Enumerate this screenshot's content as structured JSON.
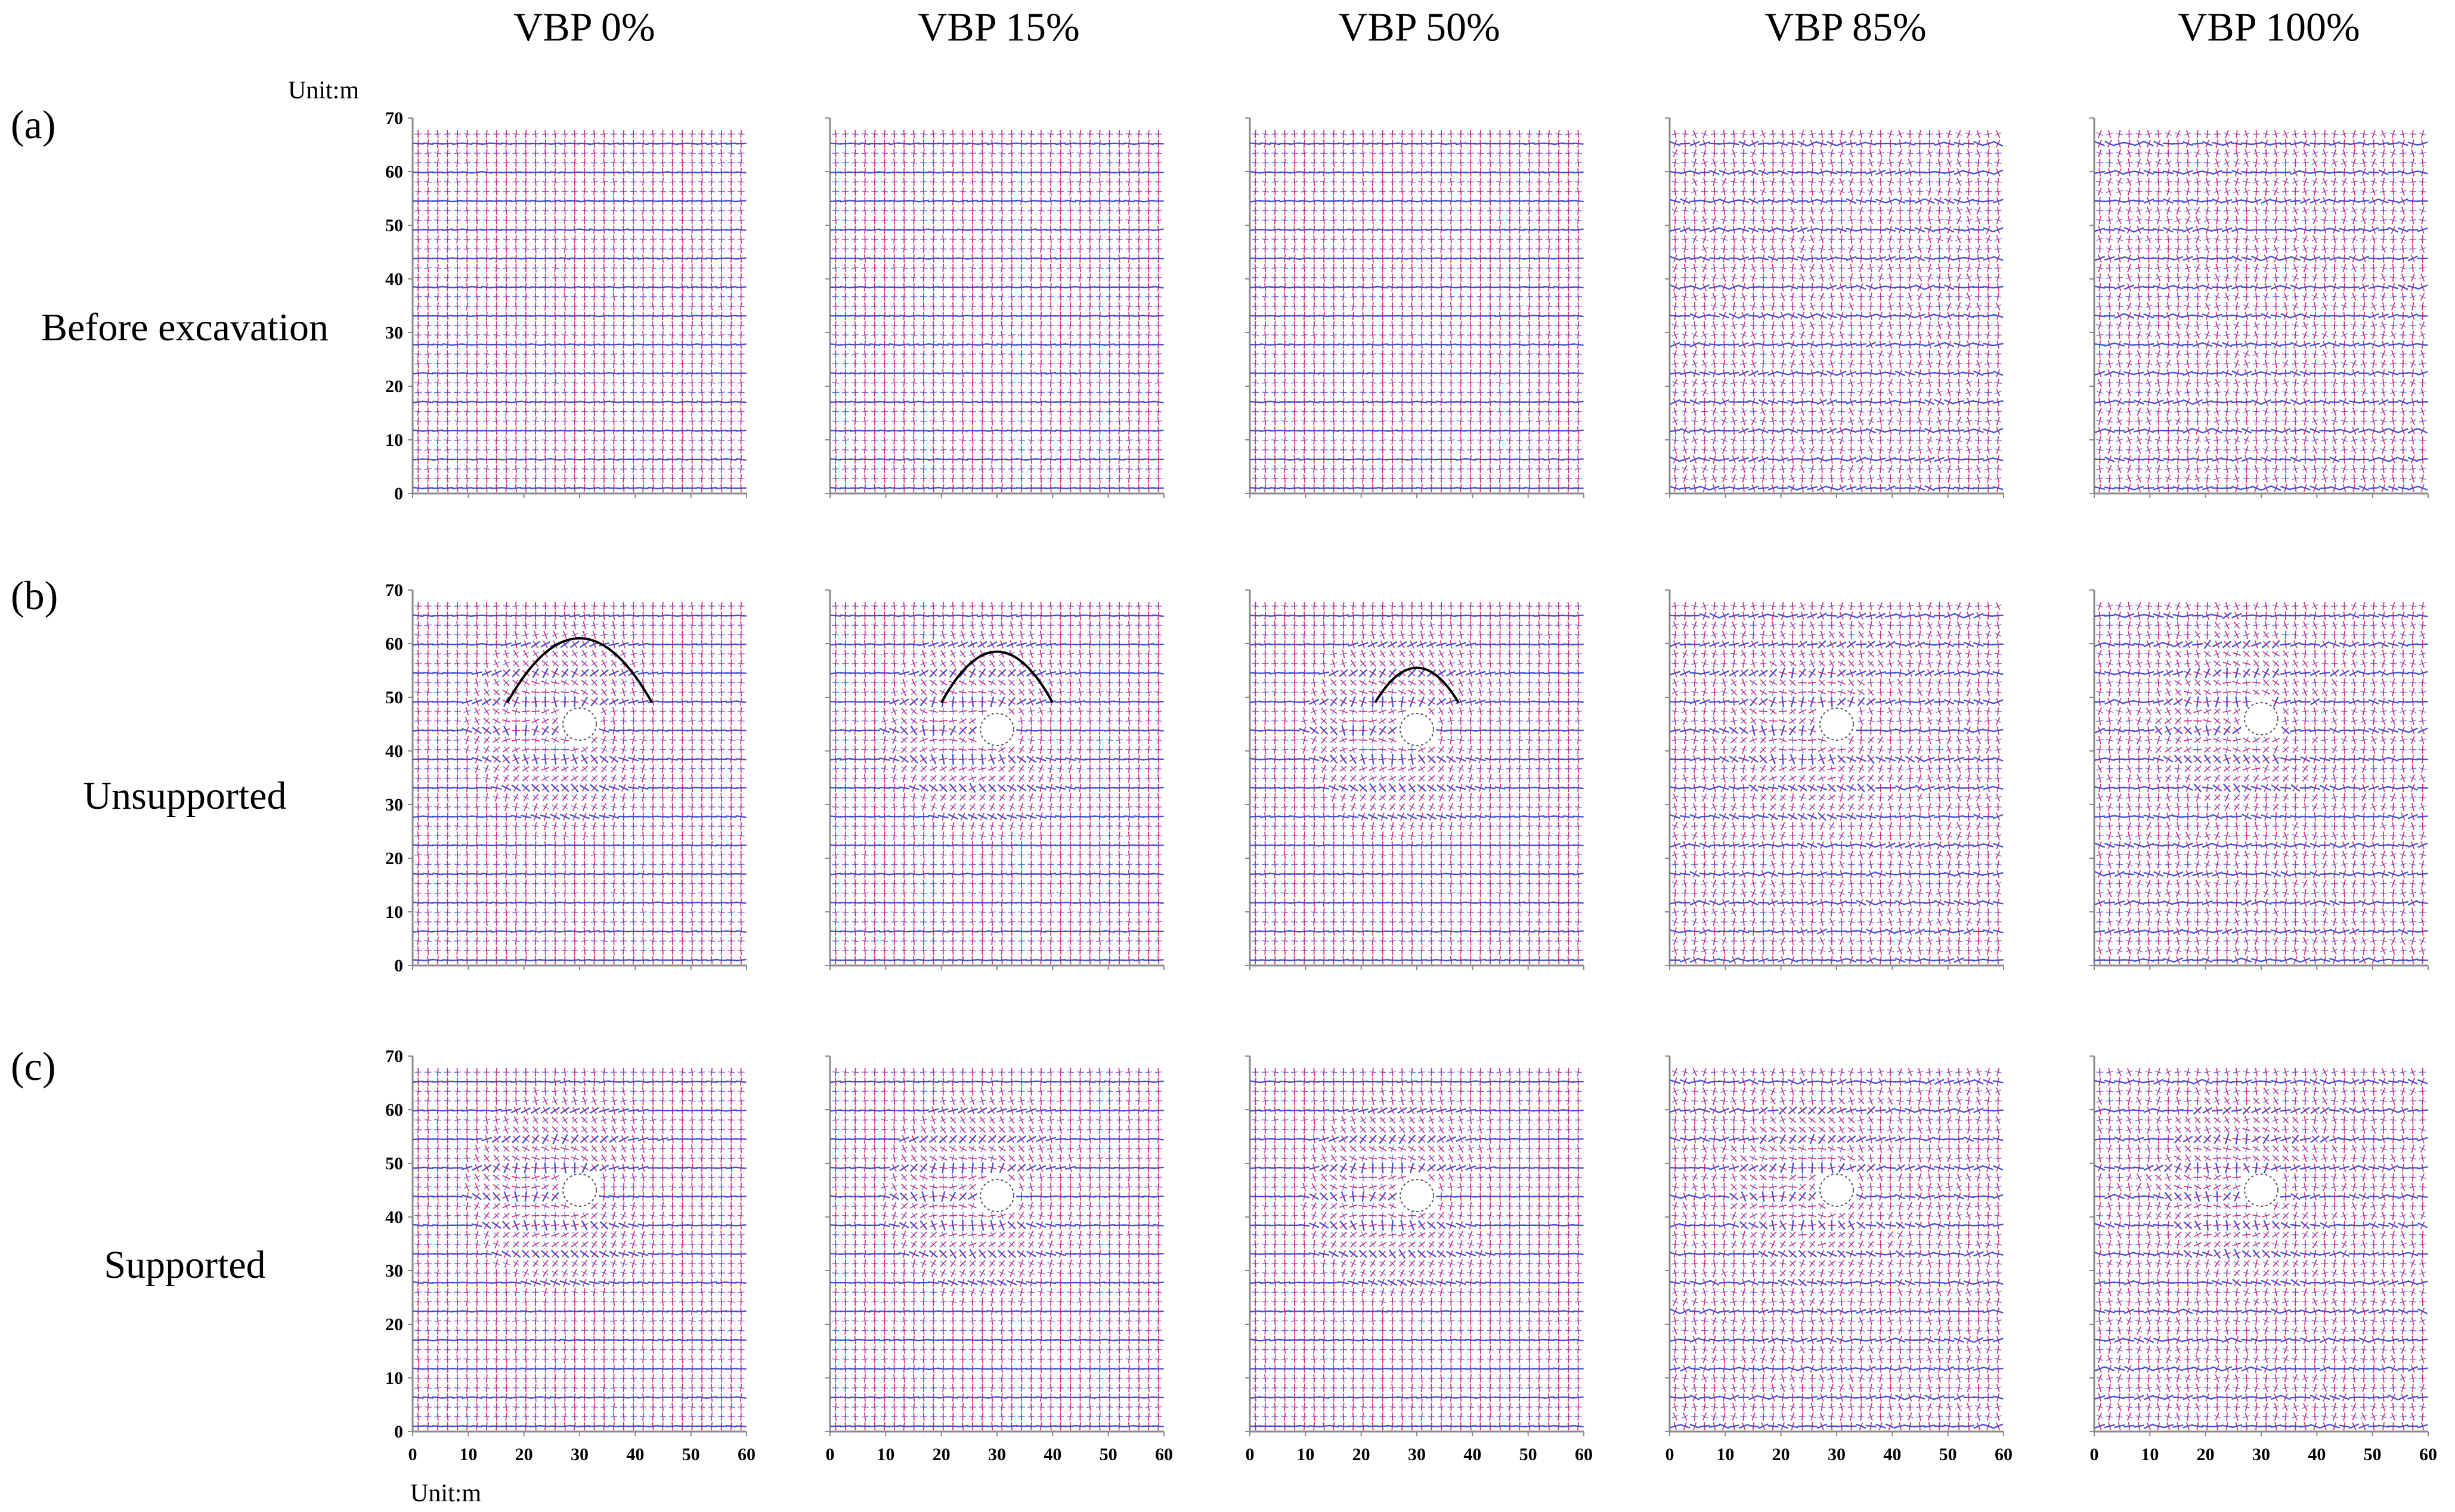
{
  "figure": {
    "column_titles": [
      "VBP 0%",
      "VBP 15%",
      "VBP 50%",
      "VBP 85%",
      "VBP 100%"
    ],
    "row_letters": [
      "(a)",
      "(b)",
      "(c)"
    ],
    "row_labels": [
      "Before excavation",
      "Unsupported",
      "Supported"
    ],
    "unit_top": "Unit:m",
    "unit_bottom": "Unit:m"
  },
  "chart_data": [
    {
      "type": "scatter",
      "title": "VBP 0% / Before excavation",
      "xlim": [
        0,
        60
      ],
      "ylim": [
        0,
        70
      ],
      "x_ticks": [
        0,
        10,
        20,
        30,
        40,
        50,
        60
      ],
      "y_ticks": [
        0,
        10,
        20,
        30,
        40,
        50,
        60,
        70
      ],
      "grid_x": [
        1,
        59
      ],
      "grid_y": [
        1,
        67
      ],
      "opening": null,
      "arc": null
    },
    {
      "type": "scatter",
      "title": "VBP 15% / Before excavation",
      "xlim": [
        0,
        60
      ],
      "ylim": [
        0,
        70
      ],
      "x_ticks": [
        0,
        10,
        20,
        30,
        40,
        50,
        60
      ],
      "y_ticks": [
        0,
        10,
        20,
        30,
        40,
        50,
        60,
        70
      ],
      "grid_x": [
        1,
        59
      ],
      "grid_y": [
        1,
        67
      ],
      "opening": null,
      "arc": null
    },
    {
      "type": "scatter",
      "title": "VBP 50% / Before excavation",
      "xlim": [
        0,
        60
      ],
      "ylim": [
        0,
        70
      ],
      "x_ticks": [
        0,
        10,
        20,
        30,
        40,
        50,
        60
      ],
      "y_ticks": [
        0,
        10,
        20,
        30,
        40,
        50,
        60,
        70
      ],
      "grid_x": [
        1,
        59
      ],
      "grid_y": [
        1,
        67
      ],
      "opening": null,
      "arc": null
    },
    {
      "type": "scatter",
      "title": "VBP 85% / Before excavation",
      "xlim": [
        0,
        60
      ],
      "ylim": [
        0,
        70
      ],
      "x_ticks": [
        0,
        10,
        20,
        30,
        40,
        50,
        60
      ],
      "y_ticks": [
        0,
        10,
        20,
        30,
        40,
        50,
        60,
        70
      ],
      "grid_x": [
        1,
        59
      ],
      "grid_y": [
        1,
        67
      ],
      "opening": null,
      "arc": null
    },
    {
      "type": "scatter",
      "title": "VBP 100% / Before excavation",
      "xlim": [
        0,
        60
      ],
      "ylim": [
        0,
        70
      ],
      "x_ticks": [
        0,
        10,
        20,
        30,
        40,
        50,
        60
      ],
      "y_ticks": [
        0,
        10,
        20,
        30,
        40,
        50,
        60,
        70
      ],
      "grid_x": [
        1,
        59
      ],
      "grid_y": [
        1,
        67
      ],
      "opening": null,
      "arc": null
    },
    {
      "type": "scatter",
      "title": "VBP 0% / Unsupported",
      "xlim": [
        0,
        60
      ],
      "ylim": [
        0,
        70
      ],
      "x_ticks": [
        0,
        10,
        20,
        30,
        40,
        50,
        60
      ],
      "y_ticks": [
        0,
        10,
        20,
        30,
        40,
        50,
        60,
        70
      ],
      "grid_x": [
        1,
        59
      ],
      "grid_y": [
        1,
        67
      ],
      "opening": {
        "x": 30,
        "y": 45,
        "r": 3
      },
      "arc": {
        "x1": 17,
        "x2": 43,
        "base": 49,
        "peak": 61
      }
    },
    {
      "type": "scatter",
      "title": "VBP 15% / Unsupported",
      "xlim": [
        0,
        60
      ],
      "ylim": [
        0,
        70
      ],
      "x_ticks": [
        0,
        10,
        20,
        30,
        40,
        50,
        60
      ],
      "y_ticks": [
        0,
        10,
        20,
        30,
        40,
        50,
        60,
        70
      ],
      "grid_x": [
        1,
        59
      ],
      "grid_y": [
        1,
        67
      ],
      "opening": {
        "x": 30,
        "y": 44,
        "r": 3
      },
      "arc": {
        "x1": 20,
        "x2": 40,
        "base": 49,
        "peak": 58.5
      }
    },
    {
      "type": "scatter",
      "title": "VBP 50% / Unsupported",
      "xlim": [
        0,
        60
      ],
      "ylim": [
        0,
        70
      ],
      "x_ticks": [
        0,
        10,
        20,
        30,
        40,
        50,
        60
      ],
      "y_ticks": [
        0,
        10,
        20,
        30,
        40,
        50,
        60,
        70
      ],
      "grid_x": [
        1,
        59
      ],
      "grid_y": [
        1,
        67
      ],
      "opening": {
        "x": 30,
        "y": 44,
        "r": 3
      },
      "arc": {
        "x1": 22.5,
        "x2": 37.5,
        "base": 49,
        "peak": 55.5
      }
    },
    {
      "type": "scatter",
      "title": "VBP 85% / Unsupported",
      "xlim": [
        0,
        60
      ],
      "ylim": [
        0,
        70
      ],
      "x_ticks": [
        0,
        10,
        20,
        30,
        40,
        50,
        60
      ],
      "y_ticks": [
        0,
        10,
        20,
        30,
        40,
        50,
        60,
        70
      ],
      "grid_x": [
        1,
        59
      ],
      "grid_y": [
        1,
        67
      ],
      "opening": {
        "x": 30,
        "y": 45,
        "r": 3
      },
      "arc": null
    },
    {
      "type": "scatter",
      "title": "VBP 100% / Unsupported",
      "xlim": [
        0,
        60
      ],
      "ylim": [
        0,
        70
      ],
      "x_ticks": [
        0,
        10,
        20,
        30,
        40,
        50,
        60
      ],
      "y_ticks": [
        0,
        10,
        20,
        30,
        40,
        50,
        60,
        70
      ],
      "grid_x": [
        1,
        59
      ],
      "grid_y": [
        1,
        67
      ],
      "opening": {
        "x": 30,
        "y": 46,
        "r": 3
      },
      "arc": null
    },
    {
      "type": "scatter",
      "title": "VBP 0% / Supported",
      "xlim": [
        0,
        60
      ],
      "ylim": [
        0,
        70
      ],
      "x_ticks": [
        0,
        10,
        20,
        30,
        40,
        50,
        60
      ],
      "y_ticks": [
        0,
        10,
        20,
        30,
        40,
        50,
        60,
        70
      ],
      "grid_x": [
        1,
        59
      ],
      "grid_y": [
        1,
        67
      ],
      "opening": {
        "x": 30,
        "y": 45,
        "r": 3
      },
      "arc": null
    },
    {
      "type": "scatter",
      "title": "VBP 15% / Supported",
      "xlim": [
        0,
        60
      ],
      "ylim": [
        0,
        70
      ],
      "x_ticks": [
        0,
        10,
        20,
        30,
        40,
        50,
        60
      ],
      "y_ticks": [
        0,
        10,
        20,
        30,
        40,
        50,
        60,
        70
      ],
      "grid_x": [
        1,
        59
      ],
      "grid_y": [
        1,
        67
      ],
      "opening": {
        "x": 30,
        "y": 44,
        "r": 3
      },
      "arc": null
    },
    {
      "type": "scatter",
      "title": "VBP 50% / Supported",
      "xlim": [
        0,
        60
      ],
      "ylim": [
        0,
        70
      ],
      "x_ticks": [
        0,
        10,
        20,
        30,
        40,
        50,
        60
      ],
      "y_ticks": [
        0,
        10,
        20,
        30,
        40,
        50,
        60,
        70
      ],
      "grid_x": [
        1,
        59
      ],
      "grid_y": [
        1,
        67
      ],
      "opening": {
        "x": 30,
        "y": 44,
        "r": 3
      },
      "arc": null
    },
    {
      "type": "scatter",
      "title": "VBP 85% / Supported",
      "xlim": [
        0,
        60
      ],
      "ylim": [
        0,
        70
      ],
      "x_ticks": [
        0,
        10,
        20,
        30,
        40,
        50,
        60
      ],
      "y_ticks": [
        0,
        10,
        20,
        30,
        40,
        50,
        60,
        70
      ],
      "grid_x": [
        1,
        59
      ],
      "grid_y": [
        1,
        67
      ],
      "opening": {
        "x": 30,
        "y": 45,
        "r": 3
      },
      "arc": null
    },
    {
      "type": "scatter",
      "title": "VBP 100% / Supported",
      "xlim": [
        0,
        60
      ],
      "ylim": [
        0,
        70
      ],
      "x_ticks": [
        0,
        10,
        20,
        30,
        40,
        50,
        60
      ],
      "y_ticks": [
        0,
        10,
        20,
        30,
        40,
        50,
        60,
        70
      ],
      "grid_x": [
        1,
        59
      ],
      "grid_y": [
        1,
        67
      ],
      "opening": {
        "x": 30,
        "y": 45,
        "r": 3
      },
      "arc": null
    }
  ],
  "colors": {
    "cross_pink": "#e0307a",
    "cross_blue": "#3040d0",
    "axis": "#8a8a8a",
    "arc": "#000000"
  }
}
